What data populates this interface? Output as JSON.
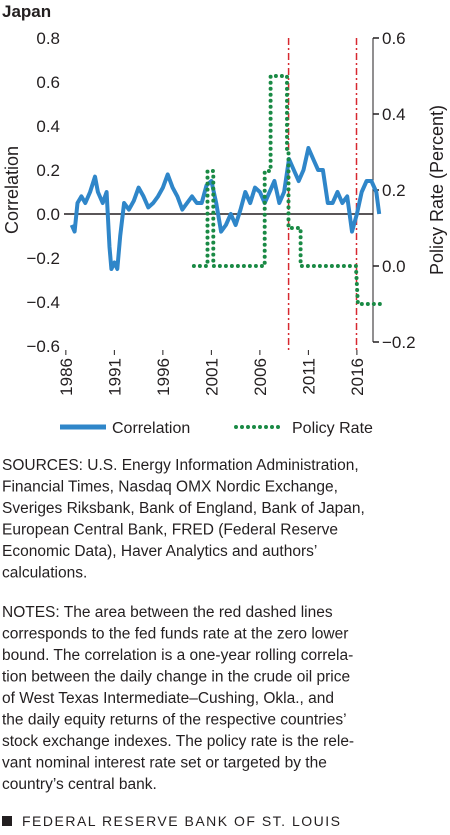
{
  "chart_data": {
    "type": "line",
    "title": "Japan",
    "y_label": "Correlation",
    "y2_label": "Policy Rate (Percent)",
    "xlim": [
      1985.5,
      2019.0
    ],
    "xticks": [
      1986,
      1991,
      1996,
      2001,
      2006,
      2011,
      2016
    ],
    "ylim": [
      -0.6,
      0.8
    ],
    "yticks": [
      0.8,
      0.6,
      0.4,
      0.2,
      {
        "value": 0,
        "label": "0.0"
      },
      {
        "value": -0.2,
        "label": "−0.2"
      },
      {
        "value": -0.4,
        "label": "−0.4"
      },
      {
        "value": -0.6,
        "label": "−0.6"
      }
    ],
    "y2lim": [
      -0.2,
      0.6
    ],
    "y2ticks": [
      0.6,
      0.4,
      0.2,
      {
        "value": 0,
        "label": "0.0"
      },
      {
        "value": -0.2,
        "label": "−0.2"
      }
    ],
    "zero_line": 0,
    "vlines": [
      2008.96,
      2015.96
    ],
    "vline_color": "#d7282f",
    "series": [
      {
        "name": "Correlation",
        "color": "#2f86c9",
        "style": "solid",
        "x": [
          1986.6,
          1986.9,
          1987.2,
          1987.6,
          1988.0,
          1988.5,
          1989.0,
          1989.3,
          1989.8,
          1990.2,
          1990.5,
          1990.7,
          1991.0,
          1991.3,
          1991.6,
          1992.0,
          1992.5,
          1993.0,
          1993.5,
          1994.0,
          1994.5,
          1995.0,
          1995.5,
          1996.0,
          1996.5,
          1997.0,
          1997.5,
          1998.0,
          1998.5,
          1999.0,
          1999.5,
          2000.0,
          2000.5,
          2001.0,
          2001.5,
          2002.0,
          2002.5,
          2003.0,
          2003.5,
          2004.0,
          2004.5,
          2005.0,
          2005.5,
          2006.0,
          2006.5,
          2007.0,
          2007.5,
          2008.0,
          2008.5,
          2009.0,
          2009.5,
          2010.0,
          2010.5,
          2011.0,
          2011.5,
          2012.0,
          2012.5,
          2013.0,
          2013.5,
          2014.0,
          2014.5,
          2015.0,
          2015.5,
          2016.0,
          2016.5,
          2017.0,
          2017.5,
          2018.0,
          2018.3
        ],
        "values": [
          -0.05,
          -0.08,
          0.05,
          0.08,
          0.05,
          0.1,
          0.17,
          0.1,
          0.05,
          0.1,
          -0.15,
          -0.25,
          -0.22,
          -0.25,
          -0.1,
          0.05,
          0.02,
          0.06,
          0.12,
          0.08,
          0.03,
          0.05,
          0.08,
          0.12,
          0.18,
          0.12,
          0.08,
          0.02,
          0.05,
          0.08,
          0.05,
          0.05,
          0.13,
          0.15,
          0.05,
          -0.08,
          -0.05,
          0.0,
          -0.05,
          0.02,
          0.1,
          0.05,
          0.12,
          0.1,
          0.05,
          0.1,
          0.15,
          0.05,
          0.1,
          0.25,
          0.2,
          0.15,
          0.2,
          0.3,
          0.25,
          0.2,
          0.2,
          0.05,
          0.05,
          0.1,
          0.05,
          0.08,
          -0.08,
          0.0,
          0.1,
          0.15,
          0.15,
          0.1,
          0.0
        ]
      },
      {
        "name": "Policy Rate",
        "color": "#1a8a45",
        "style": "dotted",
        "axis": "y2",
        "x": [
          1999.2,
          2000.6,
          2000.6,
          2001.2,
          2001.2,
          2006.5,
          2006.5,
          2007.1,
          2007.1,
          2008.8,
          2008.8,
          2008.95,
          2008.95,
          2010.2,
          2010.2,
          2015.9,
          2016.1,
          2018.5
        ],
        "values": [
          0,
          0,
          0.25,
          0.25,
          0,
          0,
          0.25,
          0.25,
          0.5,
          0.5,
          0.3,
          0.3,
          0.1,
          0.1,
          0,
          0,
          -0.1,
          -0.1
        ]
      }
    ]
  },
  "sources_lines": [
    "SOURCES: U.S. Energy Information Administration,",
    "Financial Times, Nasdaq OMX Nordic Exchange,",
    "Sveriges Riksbank, Bank of England, Bank of Japan,",
    "European Central Bank, FRED (Federal Reserve",
    "Economic Data), Haver Analytics and authors’",
    "calculations."
  ],
  "notes_lines": [
    "NOTES: The area between the red dashed lines",
    "corresponds to the fed funds rate at the zero lower",
    "bound. The correlation is a one-year rolling correla-",
    "tion between the daily change in the crude oil price",
    "of West Texas Intermediate–Cushing, Okla., and",
    "the daily equity returns of the respective countries’",
    "stock exchange indexes. The policy rate is the rele-",
    "vant nominal interest rate set or targeted by the",
    "country’s central bank."
  ],
  "footer": "FEDERAL RESERVE BANK OF ST. LOUIS"
}
